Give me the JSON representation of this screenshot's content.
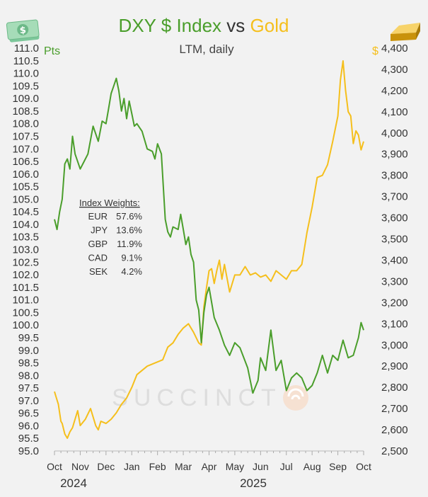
{
  "colors": {
    "dxy": "#4a9e2b",
    "gold": "#f5bf1c",
    "text": "#333333",
    "watermark": "#dddddd"
  },
  "header": {
    "title_dxy": "DXY $ Index",
    "title_vs": " vs ",
    "title_gold": "Gold",
    "subtitle": "LTM, daily",
    "left_unit": "Pts",
    "right_unit": "$"
  },
  "icons": {
    "left": "dollar-banknote-icon",
    "right": "gold-bar-icon",
    "watermark": "succinct-logo-icon"
  },
  "watermark_text": "SUCCINCT",
  "weights": {
    "title": "Index Weights:",
    "rows": [
      {
        "ccy": "EUR",
        "pct": "57.6%"
      },
      {
        "ccy": "JPY",
        "pct": "13.6%"
      },
      {
        "ccy": "GBP",
        "pct": "11.9%"
      },
      {
        "ccy": "CAD",
        "pct": "9.1%"
      },
      {
        "ccy": "SEK",
        "pct": "4.2%"
      }
    ]
  },
  "chart_data": {
    "type": "line",
    "title": "DXY $ Index vs Gold",
    "subtitle": "LTM, daily",
    "x_months": [
      "Oct",
      "Nov",
      "Dec",
      "Jan",
      "Feb",
      "Mar",
      "Apr",
      "May",
      "Jun",
      "Jul",
      "Aug",
      "Sep",
      "Oct"
    ],
    "x_years": [
      "2024",
      "2025"
    ],
    "x_range": [
      0,
      12
    ],
    "left_axis": {
      "label": "Pts",
      "ylim": [
        95.0,
        111.0
      ],
      "ticks": [
        "95.0",
        "95.5",
        "96.0",
        "96.5",
        "97.0",
        "97.5",
        "98.0",
        "98.5",
        "99.0",
        "99.5",
        "100.0",
        "100.5",
        "101.0",
        "101.5",
        "102.0",
        "102.5",
        "103.0",
        "103.5",
        "104.0",
        "104.5",
        "105.0",
        "105.5",
        "106.0",
        "106.5",
        "107.0",
        "107.5",
        "108.0",
        "108.5",
        "109.0",
        "109.5",
        "110.0",
        "110.5",
        "111.0"
      ]
    },
    "right_axis": {
      "label": "$",
      "ylim": [
        2500,
        4400
      ],
      "ticks": [
        "2,500",
        "2,600",
        "2,700",
        "2,800",
        "2,900",
        "3,000",
        "3,100",
        "3,200",
        "3,300",
        "3,400",
        "3,500",
        "3,600",
        "3,700",
        "3,800",
        "3,900",
        "4,000",
        "4,100",
        "4,200",
        "4,300",
        "4,400"
      ]
    },
    "series": [
      {
        "name": "DXY $ Index",
        "axis": "left",
        "x": [
          0,
          0.1,
          0.2,
          0.3,
          0.4,
          0.5,
          0.6,
          0.7,
          0.8,
          1.0,
          1.15,
          1.3,
          1.5,
          1.7,
          1.85,
          2.0,
          2.1,
          2.2,
          2.3,
          2.4,
          2.5,
          2.6,
          2.7,
          2.8,
          2.9,
          3.0,
          3.1,
          3.2,
          3.4,
          3.6,
          3.8,
          3.9,
          4.0,
          4.15,
          4.3,
          4.4,
          4.5,
          4.6,
          4.8,
          4.9,
          5.0,
          5.1,
          5.2,
          5.3,
          5.4,
          5.5,
          5.6,
          5.7,
          5.8,
          5.9,
          6.0,
          6.2,
          6.4,
          6.6,
          6.8,
          7.0,
          7.2,
          7.5,
          7.7,
          7.9,
          8.0,
          8.2,
          8.4,
          8.6,
          8.8,
          9.0,
          9.2,
          9.4,
          9.6,
          9.8,
          10.0,
          10.2,
          10.4,
          10.6,
          10.8,
          11.0,
          11.2,
          11.4,
          11.6,
          11.8,
          11.9,
          12.0
        ],
        "y": [
          104.2,
          103.8,
          104.5,
          105.0,
          106.4,
          106.6,
          106.2,
          107.5,
          106.8,
          106.2,
          106.5,
          106.8,
          107.9,
          107.3,
          108.1,
          108.0,
          108.6,
          109.2,
          109.5,
          109.8,
          109.3,
          108.5,
          109.0,
          108.2,
          108.9,
          108.4,
          107.9,
          108.0,
          107.7,
          107.0,
          106.9,
          106.6,
          107.2,
          106.8,
          104.2,
          103.7,
          103.5,
          103.9,
          103.8,
          104.4,
          103.8,
          103.2,
          103.5,
          102.8,
          102.5,
          101.0,
          100.6,
          99.3,
          100.5,
          101.2,
          101.5,
          100.3,
          99.8,
          99.2,
          98.8,
          99.3,
          99.1,
          98.3,
          97.3,
          97.8,
          98.7,
          98.2,
          99.8,
          98.2,
          98.6,
          97.4,
          97.9,
          98.1,
          97.9,
          97.4,
          97.6,
          98.1,
          98.8,
          98.1,
          98.8,
          98.6,
          99.4,
          98.7,
          98.8,
          99.5,
          100.1,
          99.8
        ]
      },
      {
        "name": "Gold",
        "axis": "right",
        "x": [
          0,
          0.05,
          0.15,
          0.25,
          0.3,
          0.4,
          0.5,
          0.6,
          0.7,
          0.8,
          0.9,
          1.0,
          1.2,
          1.4,
          1.6,
          1.7,
          1.8,
          2.0,
          2.2,
          2.4,
          2.6,
          2.8,
          3.0,
          3.2,
          3.4,
          3.6,
          3.8,
          4.0,
          4.2,
          4.4,
          4.6,
          4.8,
          5.0,
          5.2,
          5.4,
          5.6,
          5.7,
          5.8,
          5.9,
          6.0,
          6.1,
          6.2,
          6.3,
          6.4,
          6.5,
          6.6,
          6.8,
          7.0,
          7.2,
          7.4,
          7.6,
          7.8,
          8.0,
          8.2,
          8.4,
          8.6,
          8.8,
          9.0,
          9.2,
          9.4,
          9.6,
          9.8,
          10.0,
          10.2,
          10.4,
          10.6,
          10.8,
          11.0,
          11.1,
          11.2,
          11.3,
          11.4,
          11.5,
          11.6,
          11.7,
          11.8,
          11.9,
          12.0
        ],
        "y": [
          2780,
          2760,
          2720,
          2640,
          2630,
          2580,
          2560,
          2590,
          2610,
          2650,
          2690,
          2620,
          2650,
          2700,
          2620,
          2600,
          2640,
          2630,
          2650,
          2680,
          2720,
          2750,
          2800,
          2860,
          2880,
          2900,
          2910,
          2920,
          2930,
          2990,
          3010,
          3050,
          3080,
          3100,
          3060,
          3010,
          3000,
          3180,
          3270,
          3350,
          3360,
          3290,
          3350,
          3400,
          3310,
          3380,
          3250,
          3330,
          3330,
          3370,
          3330,
          3340,
          3320,
          3330,
          3300,
          3350,
          3330,
          3310,
          3350,
          3350,
          3380,
          3530,
          3650,
          3790,
          3800,
          3850,
          3960,
          4080,
          4250,
          4340,
          4200,
          4100,
          4080,
          3950,
          4010,
          3990,
          3920,
          3960
        ]
      }
    ]
  }
}
